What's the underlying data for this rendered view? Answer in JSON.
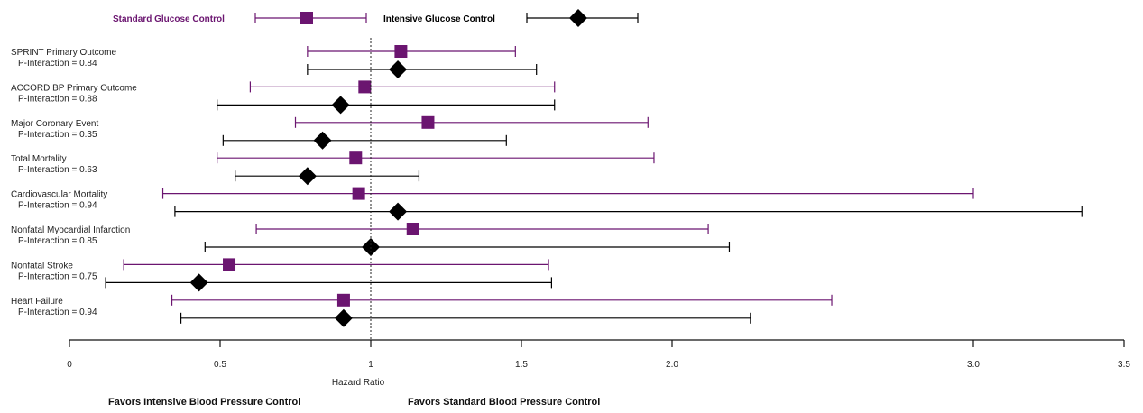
{
  "chart_data": {
    "type": "forest",
    "xlabel": "Hazard Ratio",
    "xlim": [
      0,
      3.5
    ],
    "xticks": [
      0,
      0.5,
      1,
      1.5,
      2.0,
      3.0,
      3.5
    ],
    "xtick_labels": [
      "0",
      "0.5",
      "1",
      "1.5",
      "2.0",
      "3.0",
      "3.5"
    ],
    "reference_line": 1,
    "favors_left": "Favors Intensive Blood Pressure Control",
    "favors_right": "Favors Standard Blood Pressure Control",
    "legend": [
      {
        "name": "Standard Glucose Control",
        "marker": "square",
        "color": "#6b1570"
      },
      {
        "name": "Intensive Glucose Control",
        "marker": "diamond",
        "color": "#000000"
      }
    ],
    "series": [
      {
        "name": "Standard Glucose Control",
        "marker": "square",
        "color": "#6b1570"
      },
      {
        "name": "Intensive Glucose Control",
        "marker": "diamond",
        "color": "#000000"
      }
    ],
    "rows": [
      {
        "outcome": "SPRINT Primary Outcome",
        "p_interaction": "P-Interaction = 0.84",
        "standard": {
          "hr": 1.1,
          "lo": 0.79,
          "hi": 1.48
        },
        "intensive": {
          "hr": 1.09,
          "lo": 0.79,
          "hi": 1.55
        }
      },
      {
        "outcome": "ACCORD BP Primary Outcome",
        "p_interaction": "P-Interaction = 0.88",
        "standard": {
          "hr": 0.98,
          "lo": 0.6,
          "hi": 1.61
        },
        "intensive": {
          "hr": 0.9,
          "lo": 0.49,
          "hi": 1.61
        }
      },
      {
        "outcome": "Major Coronary Event",
        "p_interaction": "P-Interaction = 0.35",
        "standard": {
          "hr": 1.19,
          "lo": 0.75,
          "hi": 1.92
        },
        "intensive": {
          "hr": 0.84,
          "lo": 0.51,
          "hi": 1.45
        }
      },
      {
        "outcome": "Total Mortality",
        "p_interaction": "P-Interaction = 0.63",
        "standard": {
          "hr": 0.95,
          "lo": 0.49,
          "hi": 1.94
        },
        "intensive": {
          "hr": 0.79,
          "lo": 0.55,
          "hi": 1.16
        }
      },
      {
        "outcome": "Cardiovascular Mortality",
        "p_interaction": "P-Interaction = 0.94",
        "standard": {
          "hr": 0.96,
          "lo": 0.31,
          "hi": 3.0
        },
        "intensive": {
          "hr": 1.09,
          "lo": 0.35,
          "hi": 3.36
        }
      },
      {
        "outcome": "Nonfatal Myocardial Infarction",
        "p_interaction": "P-Interaction = 0.85",
        "standard": {
          "hr": 1.14,
          "lo": 0.62,
          "hi": 2.12
        },
        "intensive": {
          "hr": 1.0,
          "lo": 0.45,
          "hi": 2.19
        }
      },
      {
        "outcome": "Nonfatal Stroke",
        "p_interaction": "P-Interaction = 0.75",
        "standard": {
          "hr": 0.53,
          "lo": 0.18,
          "hi": 1.59
        },
        "intensive": {
          "hr": 0.43,
          "lo": 0.12,
          "hi": 1.6
        }
      },
      {
        "outcome": "Heart Failure",
        "p_interaction": "P-Interaction = 0.94",
        "standard": {
          "hr": 0.91,
          "lo": 0.34,
          "hi": 2.53
        },
        "intensive": {
          "hr": 0.91,
          "lo": 0.37,
          "hi": 2.26
        }
      }
    ]
  }
}
